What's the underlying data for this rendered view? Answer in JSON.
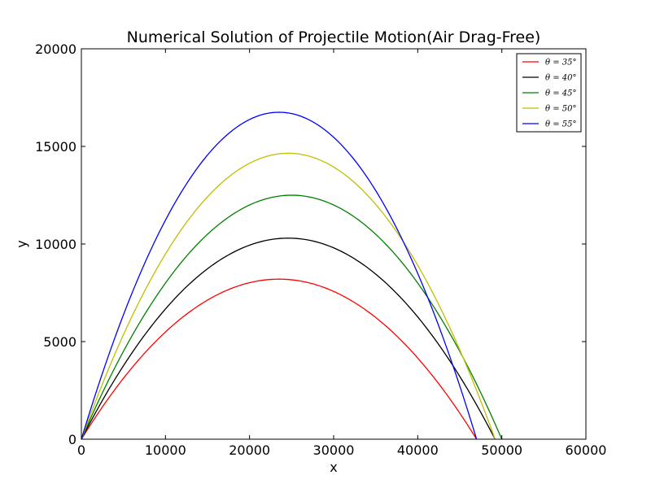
{
  "chart_data": {
    "type": "line",
    "title": "Numerical Solution of Projectile Motion(Air Drag-Free)",
    "xlabel": "x",
    "ylabel": "y",
    "xlim": [
      0,
      60000
    ],
    "ylim": [
      0,
      20000
    ],
    "xticks": [
      0,
      10000,
      20000,
      30000,
      40000,
      50000,
      60000
    ],
    "yticks": [
      0,
      5000,
      10000,
      15000,
      20000
    ],
    "legend_position": "top-right",
    "grid": false,
    "series": [
      {
        "name": "θ = 35°",
        "color": "#ff0000",
        "range": 47000,
        "peak_x": 23500,
        "peak_y": 8200
      },
      {
        "name": "θ = 40°",
        "color": "#000000",
        "range": 49200,
        "peak_x": 24600,
        "peak_y": 10300
      },
      {
        "name": "θ = 45°",
        "color": "#008000",
        "range": 50000,
        "peak_x": 25000,
        "peak_y": 12500
      },
      {
        "name": "θ = 50°",
        "color": "#bfbf00",
        "range": 49200,
        "peak_x": 24600,
        "peak_y": 14650
      },
      {
        "name": "θ = 55°",
        "color": "#0000ff",
        "range": 47000,
        "peak_x": 23500,
        "peak_y": 16750
      }
    ]
  }
}
